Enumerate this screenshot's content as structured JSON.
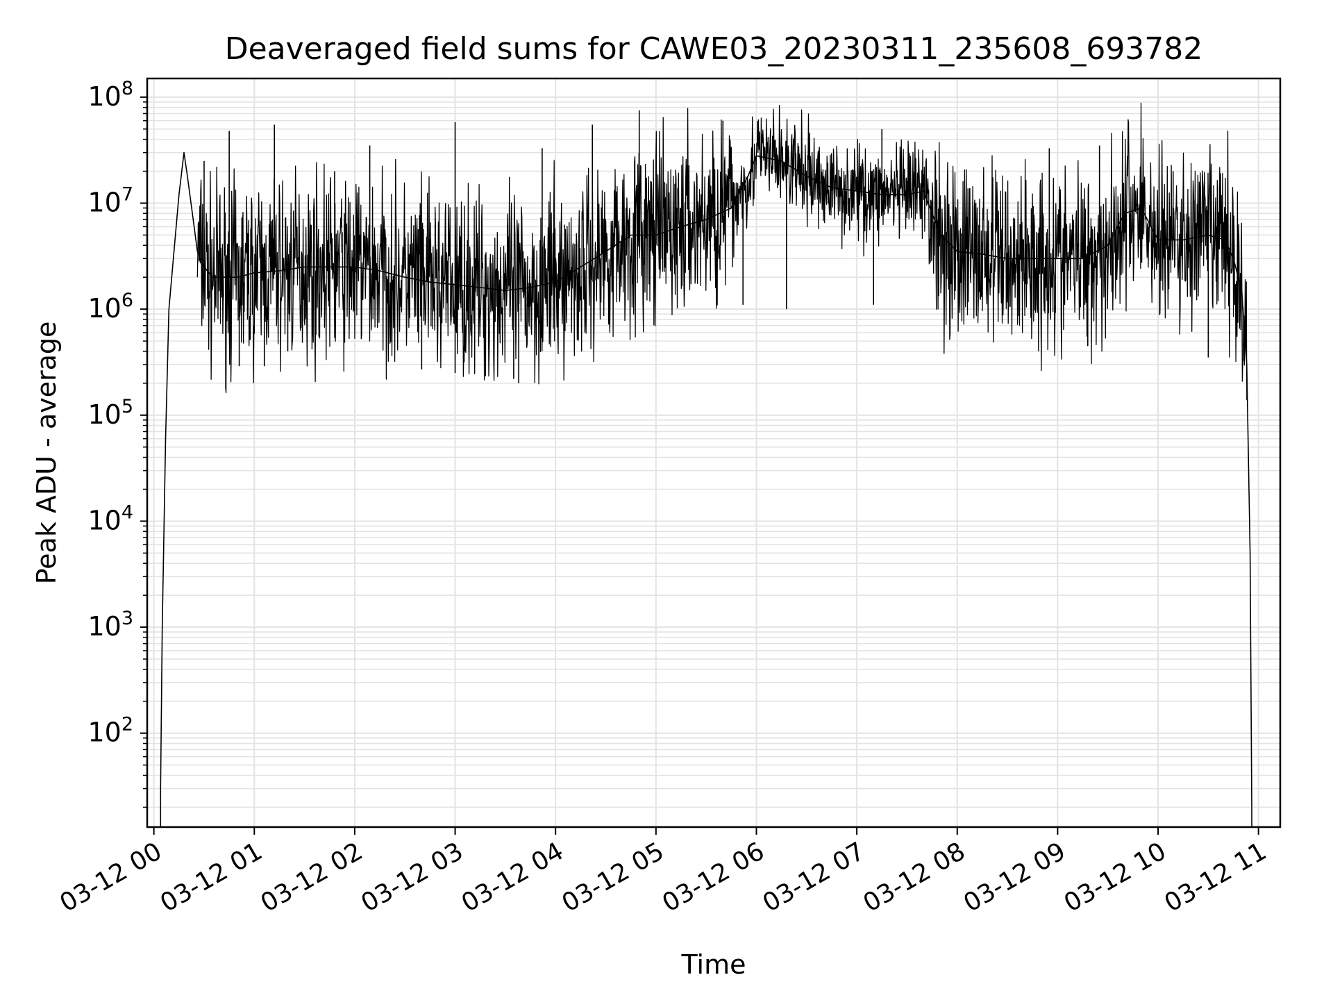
{
  "chart_data": {
    "type": "line",
    "title": "Deaveraged field sums for CAWE03_20230311_235608_693782",
    "xlabel": "Time",
    "ylabel": "Peak ADU - average",
    "yscale": "log",
    "grid": true,
    "xlim": [
      "2023-03-11 23:56",
      "2023-03-12 11:13"
    ],
    "ylim": [
      13,
      150000000
    ],
    "x_ticks": [
      {
        "t": "2023-03-12 00:00",
        "label": "03-12 00"
      },
      {
        "t": "2023-03-12 01:00",
        "label": "03-12 01"
      },
      {
        "t": "2023-03-12 02:00",
        "label": "03-12 02"
      },
      {
        "t": "2023-03-12 03:00",
        "label": "03-12 03"
      },
      {
        "t": "2023-03-12 04:00",
        "label": "03-12 04"
      },
      {
        "t": "2023-03-12 05:00",
        "label": "03-12 05"
      },
      {
        "t": "2023-03-12 06:00",
        "label": "03-12 06"
      },
      {
        "t": "2023-03-12 07:00",
        "label": "03-12 07"
      },
      {
        "t": "2023-03-12 08:00",
        "label": "03-12 08"
      },
      {
        "t": "2023-03-12 09:00",
        "label": "03-12 09"
      },
      {
        "t": "2023-03-12 10:00",
        "label": "03-12 10"
      },
      {
        "t": "2023-03-12 11:00",
        "label": "03-12 11"
      }
    ],
    "y_ticks": [
      {
        "value": 100,
        "base": "10",
        "exp": "2"
      },
      {
        "value": 1000,
        "base": "10",
        "exp": "3"
      },
      {
        "value": 10000,
        "base": "10",
        "exp": "4"
      },
      {
        "value": 100000,
        "base": "10",
        "exp": "5"
      },
      {
        "value": 1000000,
        "base": "10",
        "exp": "6"
      },
      {
        "value": 10000000,
        "base": "10",
        "exp": "7"
      },
      {
        "value": 100000000,
        "base": "10",
        "exp": "8"
      }
    ],
    "series": [
      {
        "color": "#000000",
        "x": [
          "2023-03-12 00:04",
          "2023-03-12 00:05",
          "2023-03-12 00:07",
          "2023-03-12 00:09",
          "2023-03-12 00:12",
          "2023-03-12 00:15",
          "2023-03-12 00:18",
          "2023-03-12 00:20",
          "2023-03-12 00:23",
          "2023-03-12 00:26",
          "2023-03-12 00:30",
          "2023-03-12 00:35",
          "2023-03-12 00:40",
          "2023-03-12 00:50",
          "2023-03-12 01:00",
          "2023-03-12 01:15",
          "2023-03-12 01:30",
          "2023-03-12 01:45",
          "2023-03-12 02:00",
          "2023-03-12 02:15",
          "2023-03-12 02:30",
          "2023-03-12 02:45",
          "2023-03-12 03:00",
          "2023-03-12 03:15",
          "2023-03-12 03:30",
          "2023-03-12 03:45",
          "2023-03-12 04:00",
          "2023-03-12 04:15",
          "2023-03-12 04:30",
          "2023-03-12 04:45",
          "2023-03-12 05:00",
          "2023-03-12 05:15",
          "2023-03-12 05:30",
          "2023-03-12 05:45",
          "2023-03-12 05:55",
          "2023-03-12 06:00",
          "2023-03-12 06:15",
          "2023-03-12 06:30",
          "2023-03-12 06:45",
          "2023-03-12 07:00",
          "2023-03-12 07:15",
          "2023-03-12 07:30",
          "2023-03-12 07:40",
          "2023-03-12 07:50",
          "2023-03-12 08:00",
          "2023-03-12 08:15",
          "2023-03-12 08:30",
          "2023-03-12 08:45",
          "2023-03-12 09:00",
          "2023-03-12 09:15",
          "2023-03-12 09:30",
          "2023-03-12 09:40",
          "2023-03-12 09:50",
          "2023-03-12 10:00",
          "2023-03-12 10:15",
          "2023-03-12 10:30",
          "2023-03-12 10:40",
          "2023-03-12 10:45",
          "2023-03-12 10:50",
          "2023-03-12 10:53",
          "2023-03-12 10:55",
          "2023-03-12 10:56"
        ],
        "values": [
          30,
          1000,
          60000,
          1000000,
          3500000,
          12000000,
          30000000,
          18000000,
          8000000,
          3500000,
          2500000,
          2000000,
          2000000,
          2000000,
          2200000,
          2300000,
          2500000,
          2500000,
          2500000,
          2300000,
          2000000,
          1800000,
          1700000,
          1600000,
          1500000,
          1600000,
          1800000,
          2500000,
          3500000,
          5000000,
          5000000,
          6000000,
          7000000,
          9000000,
          18000000,
          28000000,
          25000000,
          18000000,
          14000000,
          13000000,
          12000000,
          12000000,
          13000000,
          5000000,
          3500000,
          3300000,
          3000000,
          3000000,
          3000000,
          3000000,
          4000000,
          8000000,
          9000000,
          4500000,
          4500000,
          5000000,
          4500000,
          3000000,
          1500000,
          300000,
          5000,
          20
        ],
        "spikes_up": [
          {
            "x": "2023-03-12 00:30",
            "value": 25000000
          },
          {
            "x": "2023-03-12 00:45",
            "value": 48000000
          },
          {
            "x": "2023-03-12 01:12",
            "value": 55000000
          },
          {
            "x": "2023-03-12 01:48",
            "value": 20000000
          },
          {
            "x": "2023-03-12 02:09",
            "value": 35000000
          },
          {
            "x": "2023-03-12 03:00",
            "value": 58000000
          },
          {
            "x": "2023-03-12 03:52",
            "value": 33000000
          },
          {
            "x": "2023-03-12 04:22",
            "value": 55000000
          },
          {
            "x": "2023-03-12 04:50",
            "value": 75000000
          },
          {
            "x": "2023-03-12 05:40",
            "value": 60000000
          },
          {
            "x": "2023-03-12 07:15",
            "value": 50000000
          },
          {
            "x": "2023-03-12 08:55",
            "value": 33000000
          },
          {
            "x": "2023-03-12 09:25",
            "value": 35000000
          },
          {
            "x": "2023-03-12 10:09",
            "value": 20000000
          }
        ],
        "spikes_down": [
          {
            "x": "2023-03-12 00:51",
            "value": 290000
          },
          {
            "x": "2023-03-12 01:06",
            "value": 290000
          },
          {
            "x": "2023-03-12 01:20",
            "value": 400000
          },
          {
            "x": "2023-03-12 02:40",
            "value": 270000
          },
          {
            "x": "2023-03-12 03:00",
            "value": 250000
          },
          {
            "x": "2023-03-12 03:35",
            "value": 220000
          },
          {
            "x": "2023-03-12 03:38",
            "value": 200000
          },
          {
            "x": "2023-03-12 05:52",
            "value": 1100000
          },
          {
            "x": "2023-03-12 06:18",
            "value": 1000000
          },
          {
            "x": "2023-03-12 07:10",
            "value": 1100000
          },
          {
            "x": "2023-03-12 09:18",
            "value": 450000
          },
          {
            "x": "2023-03-12 10:30",
            "value": 350000
          }
        ]
      }
    ]
  }
}
